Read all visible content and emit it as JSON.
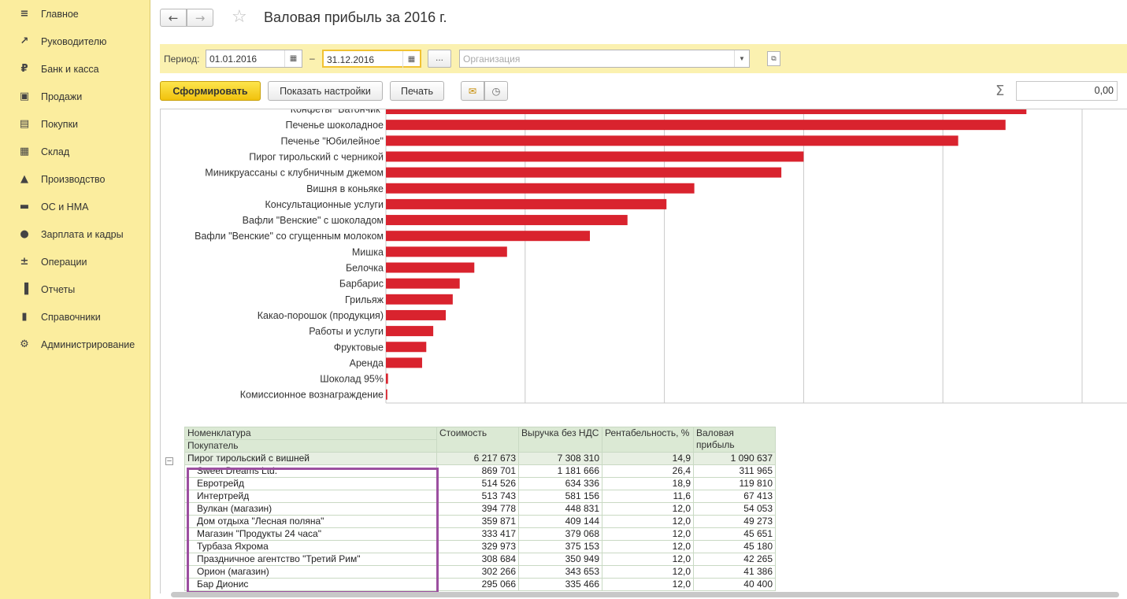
{
  "sidebar": {
    "items": [
      {
        "label": "Главное",
        "icon": "menu-icon"
      },
      {
        "label": "Руководителю",
        "icon": "trend-icon"
      },
      {
        "label": "Банк и касса",
        "icon": "ruble-icon"
      },
      {
        "label": "Продажи",
        "icon": "bag-icon"
      },
      {
        "label": "Покупки",
        "icon": "cart-icon"
      },
      {
        "label": "Склад",
        "icon": "boxes-icon"
      },
      {
        "label": "Производство",
        "icon": "factory-icon"
      },
      {
        "label": "ОС и НМА",
        "icon": "truck-icon"
      },
      {
        "label": "Зарплата и кадры",
        "icon": "person-icon"
      },
      {
        "label": "Операции",
        "icon": "dt-kt-icon"
      },
      {
        "label": "Отчеты",
        "icon": "bar-chart-icon"
      },
      {
        "label": "Справочники",
        "icon": "book-icon"
      },
      {
        "label": "Администрирование",
        "icon": "gear-icon"
      }
    ]
  },
  "header": {
    "title": "Валовая прибыль за 2016 г."
  },
  "period": {
    "label": "Период:",
    "from": "01.01.2016",
    "dash": "–",
    "to": "31.12.2016",
    "dots": "...",
    "org_placeholder": "Организация"
  },
  "toolbar": {
    "form_label": "Сформировать",
    "settings_label": "Показать настройки",
    "print_label": "Печать",
    "sum_value": "0,00"
  },
  "chart_data": {
    "type": "bar",
    "orientation": "horizontal",
    "categories": [
      "Конфеты \"Батончик\"",
      "Печенье шоколадное",
      "Печенье \"Юбилейное\"",
      "Пирог тирольский с черникой",
      "Миникруассаны с клубничным джемом",
      "Вишня в коньяке",
      "Консультационные услуги",
      "Вафли \"Венские\" с шоколадом",
      "Вафли \"Венские\" со сгущенным молоком",
      "Мишка",
      "Белочка",
      "Барбарис",
      "Грильяж",
      "Какао-порошок (продукция)",
      "Работы и услуги",
      "Фруктовые",
      "Аренда",
      "Шоколад 95%",
      "Комиссионное вознаграждение"
    ],
    "values": [
      920,
      890,
      822,
      600,
      568,
      443,
      403,
      347,
      293,
      174,
      127,
      106,
      96,
      86,
      68,
      58,
      52,
      3,
      2
    ],
    "xlim": [
      0,
      1000
    ],
    "grid": true,
    "bar_color": "#d9232e"
  },
  "table": {
    "headers": {
      "col1a": "Номенклатура",
      "col1b": "Покупатель",
      "cost": "Стоимость",
      "revenue": "Выручка без НДС",
      "margin": "Рентабельность, %",
      "profit": "Валовая прибыль"
    },
    "group": {
      "name": "Пирог тирольский с вишней",
      "cost": "6 217 673",
      "revenue": "7 308 310",
      "margin": "14,9",
      "profit": "1 090 637"
    },
    "rows": [
      {
        "buyer": "Sweet Dreams Ltd.",
        "cost": "869 701",
        "revenue": "1 181 666",
        "margin": "26,4",
        "profit": "311 965"
      },
      {
        "buyer": "Евротрейд",
        "cost": "514 526",
        "revenue": "634 336",
        "margin": "18,9",
        "profit": "119 810"
      },
      {
        "buyer": "Интертрейд",
        "cost": "513 743",
        "revenue": "581 156",
        "margin": "11,6",
        "profit": "67 413"
      },
      {
        "buyer": "Вулкан (магазин)",
        "cost": "394 778",
        "revenue": "448 831",
        "margin": "12,0",
        "profit": "54 053"
      },
      {
        "buyer": "Дом отдыха \"Лесная поляна\"",
        "cost": "359 871",
        "revenue": "409 144",
        "margin": "12,0",
        "profit": "49 273"
      },
      {
        "buyer": "Магазин \"Продукты 24 часа\"",
        "cost": "333 417",
        "revenue": "379 068",
        "margin": "12,0",
        "profit": "45 651"
      },
      {
        "buyer": "Турбаза Яхрома",
        "cost": "329 973",
        "revenue": "375 153",
        "margin": "12,0",
        "profit": "45 180"
      },
      {
        "buyer": "Праздничное агентство \"Третий Рим\"",
        "cost": "308 684",
        "revenue": "350 949",
        "margin": "12,0",
        "profit": "42 265"
      },
      {
        "buyer": "Орион (магазин)",
        "cost": "302 266",
        "revenue": "343 653",
        "margin": "12,0",
        "profit": "41 386"
      },
      {
        "buyer": "Бар Дионис",
        "cost": "295 066",
        "revenue": "335 466",
        "margin": "12,0",
        "profit": "40 400"
      }
    ]
  }
}
